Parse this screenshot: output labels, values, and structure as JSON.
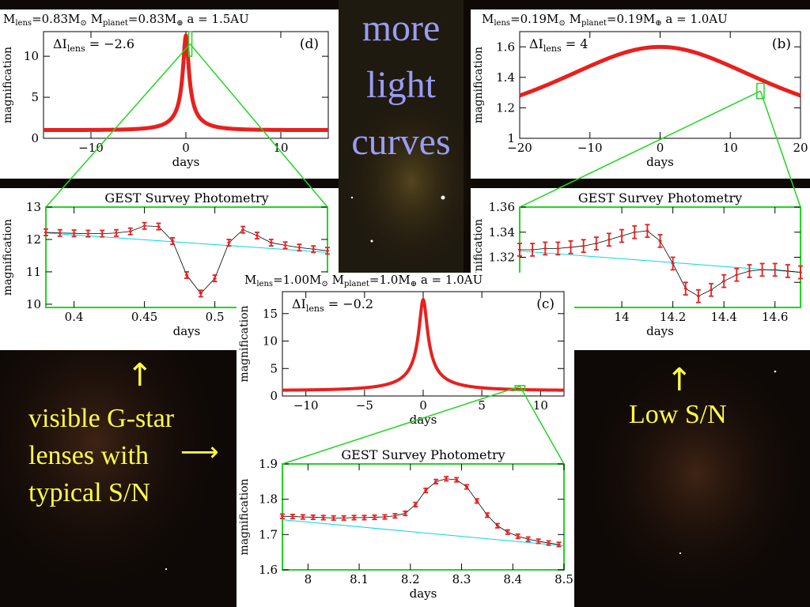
{
  "slide": {
    "title_lines": [
      "more",
      "light",
      "curves"
    ],
    "left_note_lines": [
      "visible G-star",
      "lenses with",
      "typical S/N"
    ],
    "right_note": "Low S/N",
    "arrow_up": "↑",
    "arrow_right": "⟶"
  },
  "colors": {
    "model": "#e8201e",
    "baseline": "#00d8f0",
    "zoom_box": "#22d622",
    "title": "#9a9cf4",
    "note": "#ffff44"
  },
  "chart_data": [
    {
      "id": "d",
      "type": "line",
      "header": {
        "mlens": "0.83",
        "mplanet": "0.83",
        "a": "1.5AU"
      },
      "dI": "−2.6",
      "label": "(d)",
      "xlabel": "days",
      "ylabel": "magnification",
      "xlim": [
        -15,
        15
      ],
      "ylim": [
        0,
        13
      ],
      "xticks": [
        -10,
        0,
        10
      ],
      "yticks": [
        0,
        5,
        10
      ],
      "model": {
        "kind": "pac",
        "t0": 0,
        "u0": 0.08,
        "tE": 3.5
      },
      "zoom_window": {
        "x": [
          0.38,
          0.5
        ],
        "y": [
          10,
          13
        ]
      }
    },
    {
      "id": "d_zoom",
      "type": "line",
      "title": "GEST Survey Photometry",
      "xlabel": "days",
      "ylabel": "magnification",
      "xlim": [
        0.38,
        0.58
      ],
      "ylim": [
        9.9,
        13
      ],
      "xticks": [
        0.4,
        0.45,
        0.5
      ],
      "yticks": [
        10,
        11,
        12,
        13
      ],
      "baseline": {
        "x": [
          0.38,
          0.58
        ],
        "y": [
          12.2,
          11.6
        ]
      },
      "points": {
        "x": [
          0.38,
          0.39,
          0.4,
          0.41,
          0.42,
          0.43,
          0.44,
          0.45,
          0.46,
          0.47,
          0.48,
          0.49,
          0.5,
          0.51,
          0.52,
          0.53,
          0.54,
          0.55,
          0.56,
          0.57,
          0.58
        ],
        "y": [
          12.22,
          12.2,
          12.19,
          12.18,
          12.18,
          12.2,
          12.25,
          12.42,
          12.4,
          11.95,
          10.9,
          10.33,
          10.8,
          11.9,
          12.3,
          12.12,
          11.9,
          11.82,
          11.75,
          11.7,
          11.65
        ],
        "err": 0.1
      }
    },
    {
      "id": "b",
      "type": "line",
      "header": {
        "mlens": "0.19",
        "mplanet": "0.19",
        "a": "1.0AU"
      },
      "dI": "4",
      "label": "(b)",
      "xlabel": "days",
      "ylabel": "magnification",
      "xlim": [
        -20,
        20
      ],
      "ylim": [
        1,
        1.7
      ],
      "xticks": [
        -20,
        -10,
        0,
        10,
        20
      ],
      "yticks": [
        1,
        1.2,
        1.4,
        1.6
      ],
      "model": {
        "kind": "pac",
        "t0": 0,
        "u0": 0.75,
        "tE": 25
      },
      "zoom_window": {
        "x": [
          13.9,
          14.7
        ],
        "y": [
          1.26,
          1.36
        ]
      }
    },
    {
      "id": "b_zoom",
      "type": "line",
      "title": "GEST Survey Photometry",
      "xlabel": "days",
      "ylabel": "magnification",
      "xlim": [
        13.6,
        14.7
      ],
      "ylim": [
        1.28,
        1.36
      ],
      "xticks": [
        14,
        14.2,
        14.4,
        14.6
      ],
      "yticks": [
        1.3,
        1.32,
        1.34,
        1.36
      ],
      "baseline": {
        "x": [
          13.6,
          14.7
        ],
        "y": [
          1.325,
          1.308
        ]
      },
      "points": {
        "x": [
          13.6,
          13.65,
          13.7,
          13.75,
          13.8,
          13.85,
          13.9,
          13.95,
          14.0,
          14.05,
          14.1,
          14.15,
          14.2,
          14.25,
          14.3,
          14.35,
          14.4,
          14.45,
          14.5,
          14.55,
          14.6,
          14.65,
          14.7
        ],
        "y": [
          1.326,
          1.326,
          1.327,
          1.327,
          1.328,
          1.329,
          1.331,
          1.334,
          1.337,
          1.34,
          1.341,
          1.333,
          1.315,
          1.295,
          1.289,
          1.294,
          1.301,
          1.306,
          1.309,
          1.31,
          1.31,
          1.309,
          1.308
        ],
        "err": 0.005
      }
    },
    {
      "id": "c",
      "type": "line",
      "header": {
        "mlens": "1.00",
        "mplanet": "1.0",
        "a": "1.0AU"
      },
      "dI": "−0.2",
      "label": "(c)",
      "xlabel": "days",
      "ylabel": "magnification",
      "xlim": [
        -12,
        12
      ],
      "ylim": [
        0,
        19
      ],
      "xticks": [
        -10,
        -5,
        0,
        5,
        10
      ],
      "yticks": [
        0,
        5,
        10,
        15
      ],
      "model": {
        "kind": "pac",
        "t0": 0,
        "u0": 0.057,
        "tE": 6
      },
      "zoom_window": {
        "x": [
          7.9,
          8.6
        ],
        "y": [
          1.6,
          1.9
        ]
      }
    },
    {
      "id": "c_zoom",
      "type": "line",
      "title": "GEST Survey Photometry",
      "xlabel": "days",
      "ylabel": "magnification",
      "xlim": [
        7.95,
        8.5
      ],
      "ylim": [
        1.6,
        1.9
      ],
      "xticks": [
        8,
        8.1,
        8.2,
        8.3,
        8.4,
        8.5
      ],
      "yticks": [
        1.6,
        1.7,
        1.8,
        1.9
      ],
      "baseline": {
        "x": [
          7.95,
          8.5
        ],
        "y": [
          1.742,
          1.668
        ]
      },
      "points": {
        "x": [
          7.95,
          7.97,
          7.99,
          8.01,
          8.03,
          8.05,
          8.07,
          8.09,
          8.11,
          8.13,
          8.15,
          8.17,
          8.19,
          8.21,
          8.23,
          8.25,
          8.27,
          8.29,
          8.31,
          8.33,
          8.35,
          8.37,
          8.39,
          8.41,
          8.43,
          8.45,
          8.47,
          8.49
        ],
        "y": [
          1.752,
          1.751,
          1.75,
          1.749,
          1.748,
          1.747,
          1.747,
          1.748,
          1.748,
          1.749,
          1.75,
          1.753,
          1.76,
          1.785,
          1.825,
          1.85,
          1.858,
          1.855,
          1.835,
          1.795,
          1.755,
          1.725,
          1.707,
          1.695,
          1.687,
          1.681,
          1.676,
          1.672
        ],
        "err": 0.006
      }
    }
  ]
}
